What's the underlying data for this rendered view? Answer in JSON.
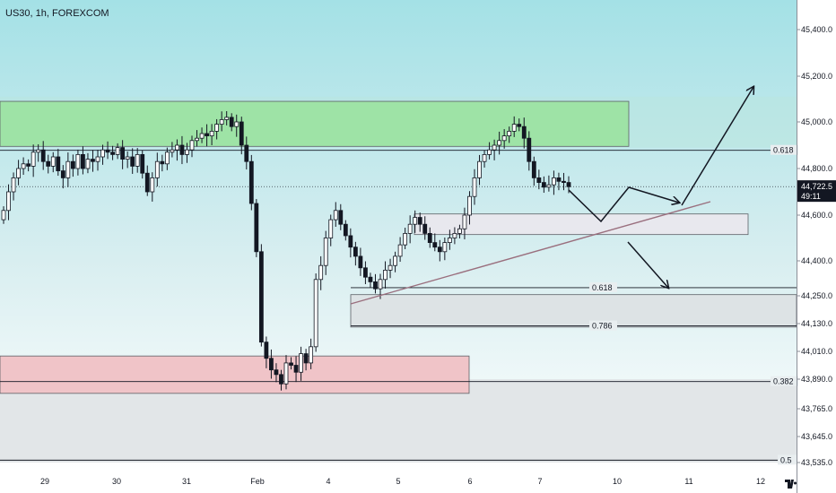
{
  "chart_title": "US30, 1h, FOREXCOM",
  "colors": {
    "bg_top": "#a5e2e7",
    "bg_bottom": "#ffffff",
    "up_candle": "#ffffff",
    "down_candle": "#131722",
    "green_zone": "#9ee3a6",
    "red_zone": "#f0c4c8",
    "gray_zone": "#dde3e5",
    "white_zone": "#e8e8ee",
    "trendline": "#9a6f7e",
    "price_label_bg": "#131722"
  },
  "price_scale": {
    "ticks": [
      "45,400.0",
      "45,200.0",
      "45,000.0",
      "44,800.0",
      "44,600.0",
      "44,400.0",
      "44,250.0",
      "44,130.0",
      "44,010.0",
      "43,890.0",
      "43,765.0",
      "43,645.0",
      "43,535.0"
    ],
    "current_price": "44,722.5",
    "countdown": "49:11"
  },
  "time_scale": {
    "labels": [
      "29",
      "30",
      "31",
      "Feb",
      "4",
      "5",
      "6",
      "7",
      "10",
      "11",
      "12"
    ]
  },
  "fib_levels": [
    {
      "label": "0.618",
      "price": 44878
    },
    {
      "label": "0.618",
      "price": 44285
    },
    {
      "label": "0.786",
      "price": 44120
    },
    {
      "label": "0.382",
      "price": 43880
    },
    {
      "label": "0.5",
      "price": 43545
    }
  ],
  "chart_data": {
    "type": "candlestick",
    "symbol": "US30",
    "interval": "1h",
    "broker": "FOREXCOM",
    "y_range": [
      43535,
      45460
    ],
    "last_price": 44722.5,
    "zones": [
      {
        "kind": "supply",
        "color": "green",
        "price_top": 45090,
        "price_bottom": 44895
      },
      {
        "kind": "demand",
        "color": "red",
        "price_top": 43990,
        "price_bottom": 43830
      },
      {
        "kind": "rectangle",
        "color": "white",
        "price_top": 44605,
        "price_bottom": 44515
      },
      {
        "kind": "rectangle",
        "color": "gray",
        "price_top": 44255,
        "price_bottom": 44115
      }
    ],
    "closes": [
      44620,
      44700,
      44760,
      44800,
      44820,
      44810,
      44870,
      44880,
      44830,
      44810,
      44850,
      44790,
      44760,
      44830,
      44800,
      44860,
      44800,
      44840,
      44830,
      44850,
      44880,
      44870,
      44860,
      44890,
      44840,
      44850,
      44810,
      44860,
      44780,
      44700,
      44760,
      44830,
      44820,
      44870,
      44880,
      44900,
      44860,
      44880,
      44920,
      44930,
      44950,
      44940,
      44960,
      44990,
      45010,
      45020,
      44980,
      45000,
      44900,
      44830,
      44650,
      44440,
      44050,
      43980,
      43930,
      43910,
      43870,
      43960,
      43950,
      43920,
      44000,
      43960,
      44030,
      44320,
      44380,
      44500,
      44580,
      44620,
      44560,
      44510,
      44460,
      44420,
      44370,
      44330,
      44310,
      44280,
      44320,
      44360,
      44380,
      44420,
      44470,
      44520,
      44560,
      44590,
      44560,
      44520,
      44480,
      44460,
      44440,
      44480,
      44500,
      44520,
      44540,
      44600,
      44680,
      44760,
      44830,
      44860,
      44880,
      44900,
      44920,
      44940,
      44960,
      44990,
      44980,
      44930,
      44830,
      44760,
      44740,
      44720,
      44730,
      44760,
      44745,
      44740,
      44722
    ]
  }
}
